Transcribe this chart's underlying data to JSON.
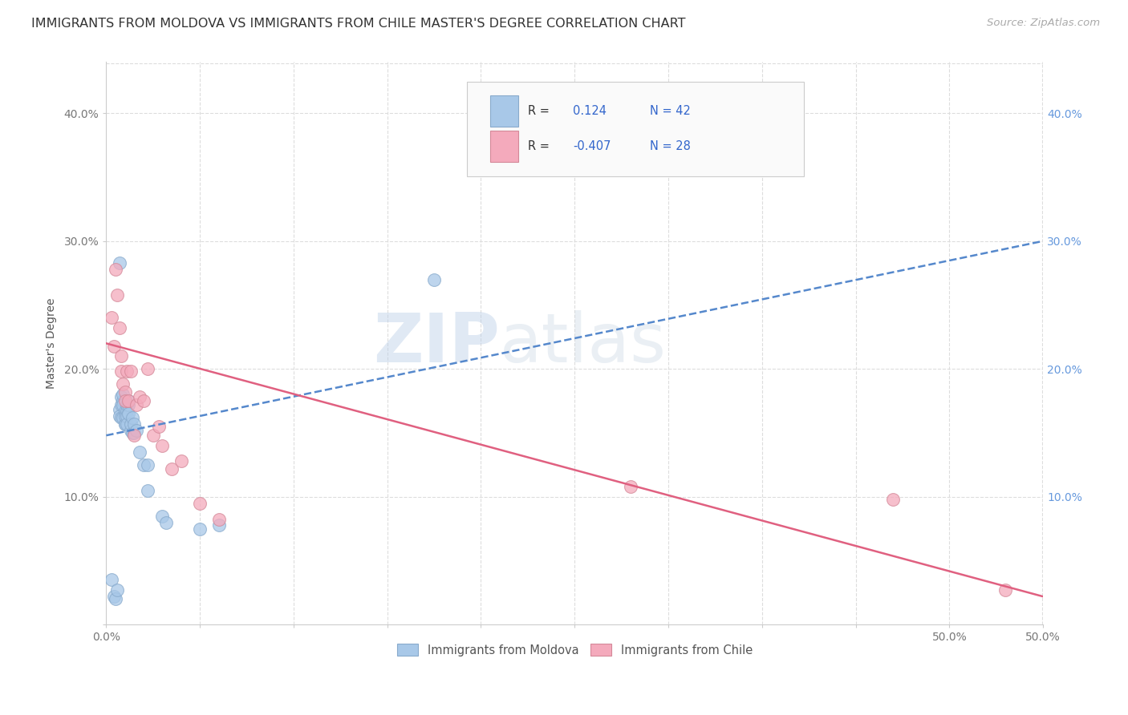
{
  "title": "IMMIGRANTS FROM MOLDOVA VS IMMIGRANTS FROM CHILE MASTER'S DEGREE CORRELATION CHART",
  "source": "Source: ZipAtlas.com",
  "ylabel": "Master's Degree",
  "watermark_zip": "ZIP",
  "watermark_atlas": "atlas",
  "xlim": [
    0.0,
    0.5
  ],
  "ylim": [
    0.0,
    0.44
  ],
  "xticks": [
    0.0,
    0.05,
    0.1,
    0.15,
    0.2,
    0.25,
    0.3,
    0.35,
    0.4,
    0.45,
    0.5
  ],
  "xtick_labels_show": {
    "0.0": "0.0%",
    "0.5": "50.0%"
  },
  "yticks": [
    0.0,
    0.1,
    0.2,
    0.3,
    0.4
  ],
  "ytick_labels_left": [
    "",
    "10.0%",
    "20.0%",
    "30.0%",
    "40.0%"
  ],
  "ytick_labels_right": [
    "",
    "10.0%",
    "20.0%",
    "30.0%",
    "40.0%"
  ],
  "legend_r1_val": "0.124",
  "legend_n1": "N = 42",
  "legend_r2_val": "-0.407",
  "legend_n2": "N = 28",
  "color_moldova": "#A8C8E8",
  "color_moldova_edge": "#88AACC",
  "color_chile": "#F4AABC",
  "color_chile_edge": "#D48898",
  "color_moldova_line": "#5588CC",
  "color_chile_line": "#E06080",
  "moldova_scatter_x": [
    0.003,
    0.004,
    0.005,
    0.006,
    0.007,
    0.007,
    0.007,
    0.008,
    0.008,
    0.008,
    0.009,
    0.009,
    0.009,
    0.009,
    0.01,
    0.01,
    0.01,
    0.01,
    0.011,
    0.011,
    0.011,
    0.011,
    0.012,
    0.012,
    0.012,
    0.013,
    0.013,
    0.014,
    0.014,
    0.015,
    0.015,
    0.016,
    0.018,
    0.02,
    0.022,
    0.022,
    0.03,
    0.032,
    0.05,
    0.06,
    0.175,
    0.29
  ],
  "moldova_scatter_y": [
    0.035,
    0.022,
    0.02,
    0.027,
    0.283,
    0.168,
    0.163,
    0.178,
    0.162,
    0.172,
    0.175,
    0.18,
    0.162,
    0.172,
    0.157,
    0.167,
    0.157,
    0.163,
    0.167,
    0.172,
    0.163,
    0.157,
    0.172,
    0.165,
    0.175,
    0.152,
    0.157,
    0.15,
    0.162,
    0.15,
    0.157,
    0.152,
    0.135,
    0.125,
    0.125,
    0.105,
    0.085,
    0.08,
    0.075,
    0.078,
    0.27,
    0.395
  ],
  "chile_scatter_x": [
    0.003,
    0.004,
    0.005,
    0.006,
    0.007,
    0.008,
    0.008,
    0.009,
    0.01,
    0.01,
    0.011,
    0.012,
    0.013,
    0.015,
    0.016,
    0.018,
    0.02,
    0.022,
    0.025,
    0.028,
    0.03,
    0.035,
    0.04,
    0.05,
    0.06,
    0.28,
    0.42,
    0.48
  ],
  "chile_scatter_y": [
    0.24,
    0.218,
    0.278,
    0.258,
    0.232,
    0.21,
    0.198,
    0.188,
    0.182,
    0.175,
    0.198,
    0.175,
    0.198,
    0.148,
    0.172,
    0.178,
    0.175,
    0.2,
    0.148,
    0.155,
    0.14,
    0.122,
    0.128,
    0.095,
    0.082,
    0.108,
    0.098,
    0.027
  ],
  "moldova_line_x": [
    0.0,
    0.5
  ],
  "moldova_line_y": [
    0.148,
    0.3
  ],
  "chile_line_x": [
    0.0,
    0.5
  ],
  "chile_line_y": [
    0.22,
    0.022
  ],
  "background_color": "#FFFFFF",
  "grid_color": "#DDDDDD",
  "title_fontsize": 11.5,
  "axis_label_fontsize": 10,
  "tick_fontsize": 10,
  "source_fontsize": 9.5
}
